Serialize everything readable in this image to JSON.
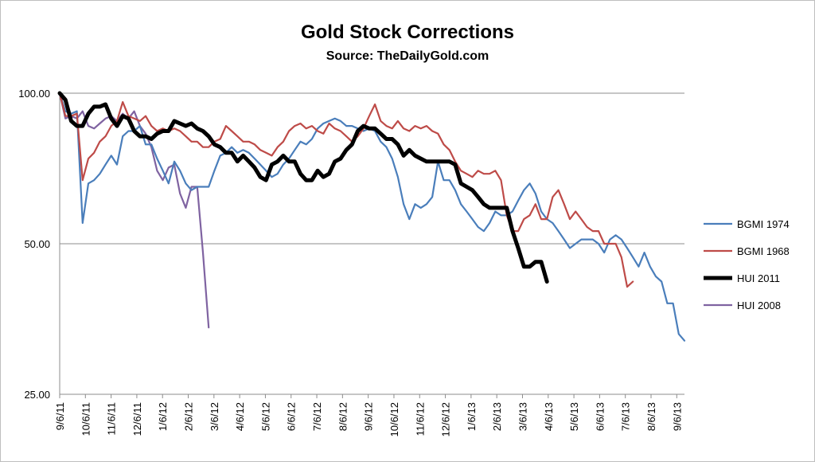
{
  "chart_data": {
    "type": "line",
    "title": "Gold Stock Corrections",
    "subtitle": "Source: TheDailyGold.com",
    "xlabel": "",
    "ylabel": "",
    "y_scale": "log",
    "ylim": [
      25,
      100
    ],
    "y_ticks": [
      100,
      50,
      25
    ],
    "y_tick_labels": [
      "100.00",
      "50.00",
      "25.00"
    ],
    "grid": true,
    "legend_position": "right",
    "x_tick_labels": [
      "9/6/11",
      "10/6/11",
      "11/6/11",
      "12/6/11",
      "1/6/12",
      "2/6/12",
      "3/6/12",
      "4/6/12",
      "5/6/12",
      "6/6/12",
      "7/6/12",
      "8/6/12",
      "9/6/12",
      "10/6/12",
      "11/6/12",
      "12/6/12",
      "1/6/13",
      "2/6/13",
      "3/6/13",
      "4/6/13",
      "5/6/13",
      "6/6/13",
      "7/6/13",
      "8/6/13",
      "9/6/13"
    ],
    "series": [
      {
        "name": "BGMI 1974",
        "color": "#4a7ebb",
        "width": 2.2,
        "values": [
          100,
          92,
          91,
          92,
          55,
          66,
          67,
          69,
          72,
          75,
          72,
          82,
          84,
          84,
          86,
          79,
          79,
          74,
          70,
          66,
          73,
          70,
          66,
          64,
          65,
          65,
          65,
          70,
          75,
          76,
          78,
          76,
          77,
          76,
          74,
          72,
          70,
          68,
          69,
          72,
          74,
          77,
          80,
          79,
          81,
          85,
          87,
          88,
          89,
          88,
          86,
          86,
          85,
          84,
          85,
          84,
          80,
          78,
          74,
          68,
          60,
          56,
          60,
          59,
          60,
          62,
          73,
          67,
          67,
          64,
          60,
          58,
          56,
          54,
          53,
          55,
          58,
          57,
          57,
          58,
          61,
          64,
          66,
          63,
          58,
          56,
          55,
          53,
          51,
          49,
          50,
          51,
          51,
          51,
          50,
          48,
          51,
          52,
          51,
          49,
          47,
          45,
          48,
          45,
          43,
          42,
          38,
          38,
          33,
          32
        ]
      },
      {
        "name": "BGMI 1968",
        "color": "#be4b48",
        "width": 2.2,
        "values": [
          100,
          90,
          90,
          91,
          67,
          74,
          76,
          80,
          82,
          86,
          88,
          96,
          90,
          89,
          88,
          90,
          86,
          84,
          85,
          84,
          85,
          84,
          82,
          80,
          80,
          78,
          78,
          80,
          81,
          86,
          84,
          82,
          80,
          80,
          79,
          77,
          76,
          75,
          78,
          80,
          84,
          86,
          87,
          85,
          86,
          84,
          83,
          87,
          85,
          84,
          82,
          80,
          82,
          85,
          90,
          95,
          88,
          86,
          85,
          88,
          85,
          84,
          86,
          85,
          86,
          84,
          83,
          79,
          77,
          73,
          70,
          69,
          68,
          70,
          69,
          69,
          70,
          67,
          57,
          53,
          53,
          56,
          57,
          60,
          56,
          56,
          62,
          64,
          60,
          56,
          58,
          56,
          54,
          53,
          53,
          50,
          50,
          50,
          47,
          41,
          42
        ]
      },
      {
        "name": "HUI 2011",
        "color": "#000000",
        "width": 5,
        "values": [
          100,
          97,
          88,
          86,
          86,
          91,
          94,
          94,
          95,
          89,
          86,
          90,
          89,
          84,
          82,
          82,
          81,
          83,
          84,
          84,
          88,
          87,
          86,
          87,
          85,
          84,
          82,
          79,
          78,
          76,
          76,
          73,
          75,
          73,
          71,
          68,
          67,
          72,
          73,
          75,
          73,
          73,
          69,
          67,
          67,
          70,
          68,
          69,
          73,
          74,
          77,
          79,
          84,
          86,
          85,
          85,
          83,
          81,
          81,
          79,
          75,
          77,
          75,
          74,
          73,
          73,
          73,
          73,
          73,
          72,
          66,
          65,
          64,
          62,
          60,
          59,
          59,
          59,
          59,
          53,
          49,
          45,
          45,
          46,
          46,
          42
        ]
      },
      {
        "name": "HUI 2008",
        "color": "#7f63a1",
        "width": 2.2,
        "values": [
          100,
          89,
          90,
          89,
          92,
          86,
          85,
          87,
          89,
          90,
          88,
          91,
          89,
          92,
          86,
          83,
          78,
          70,
          67,
          71,
          72,
          63,
          59,
          65,
          65,
          48,
          34
        ]
      }
    ]
  }
}
